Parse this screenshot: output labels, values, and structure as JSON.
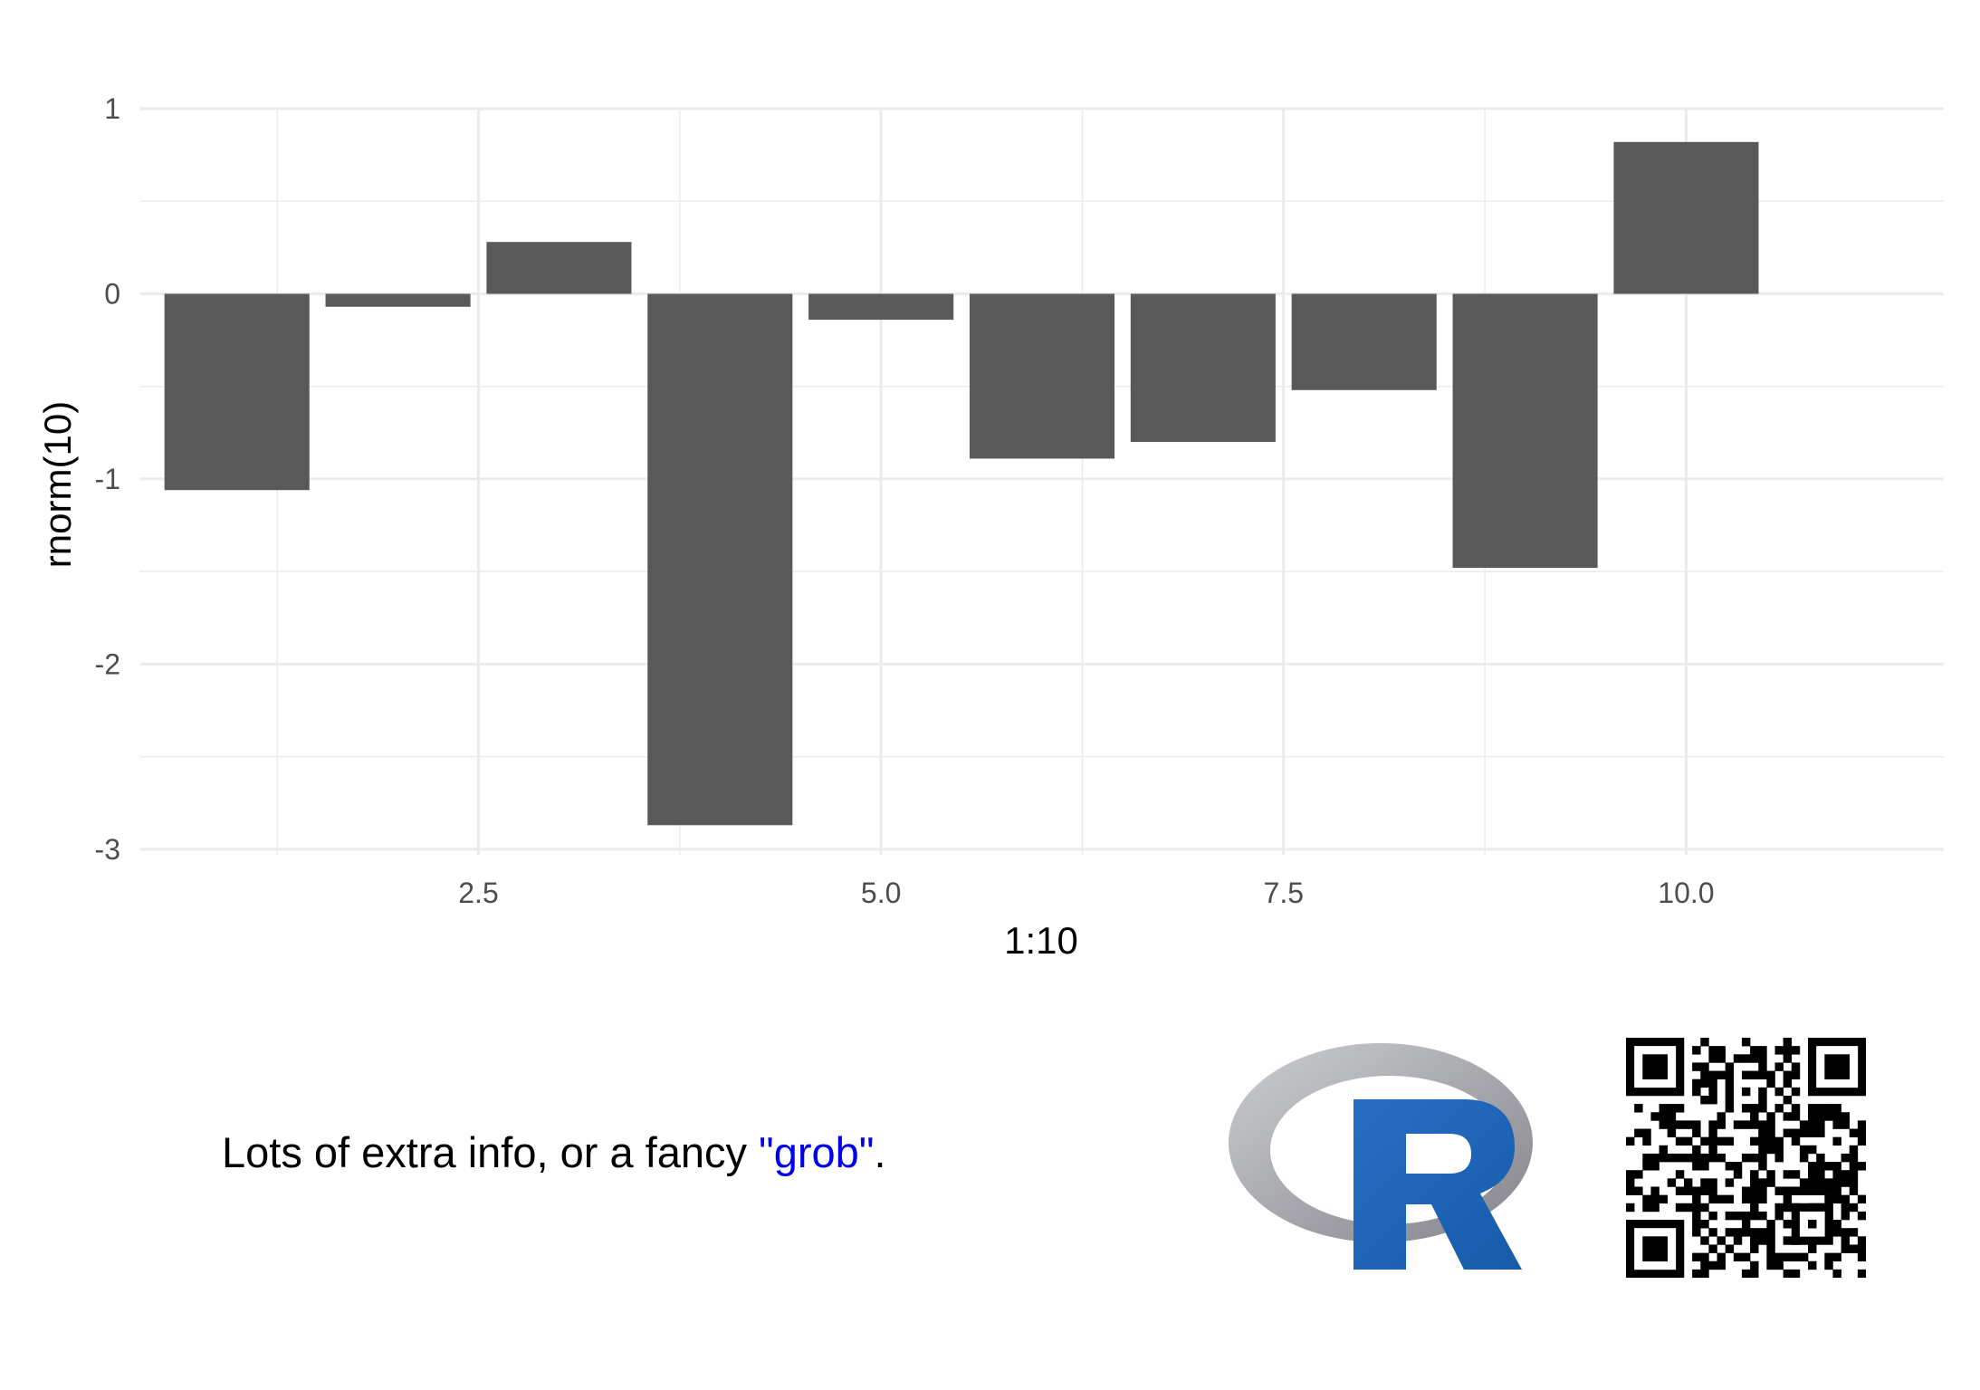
{
  "chart_data": {
    "type": "bar",
    "x": [
      1,
      2,
      3,
      4,
      5,
      6,
      7,
      8,
      9,
      10
    ],
    "values": [
      -1.06,
      -0.07,
      0.28,
      -2.87,
      -0.14,
      -0.89,
      -0.8,
      -0.52,
      -1.48,
      0.82
    ],
    "xlabel": "1:10",
    "ylabel": "rnorm(10)",
    "xlim": [
      0.4,
      11.6
    ],
    "ylim": [
      -3.03,
      1.0
    ],
    "xticks": [
      2.5,
      5.0,
      7.5,
      10.0
    ],
    "xtick_labels": [
      "2.5",
      "5.0",
      "7.5",
      "10.0"
    ],
    "yticks": [
      -3,
      -2,
      -1,
      0,
      1
    ],
    "ytick_labels": [
      "-3",
      "-2",
      "-1",
      "0",
      "1"
    ],
    "grid": true,
    "bar_color": "#595959",
    "grid_color": "#ebebeb"
  },
  "footer": {
    "text_before": "Lots of extra info, or a fancy ",
    "text_highlight": "\"grob\"",
    "text_after": ".",
    "highlight_color": "#0000ee"
  },
  "logo": {
    "name": "r-logo"
  },
  "qr": {
    "name": "qr-code-icon"
  }
}
